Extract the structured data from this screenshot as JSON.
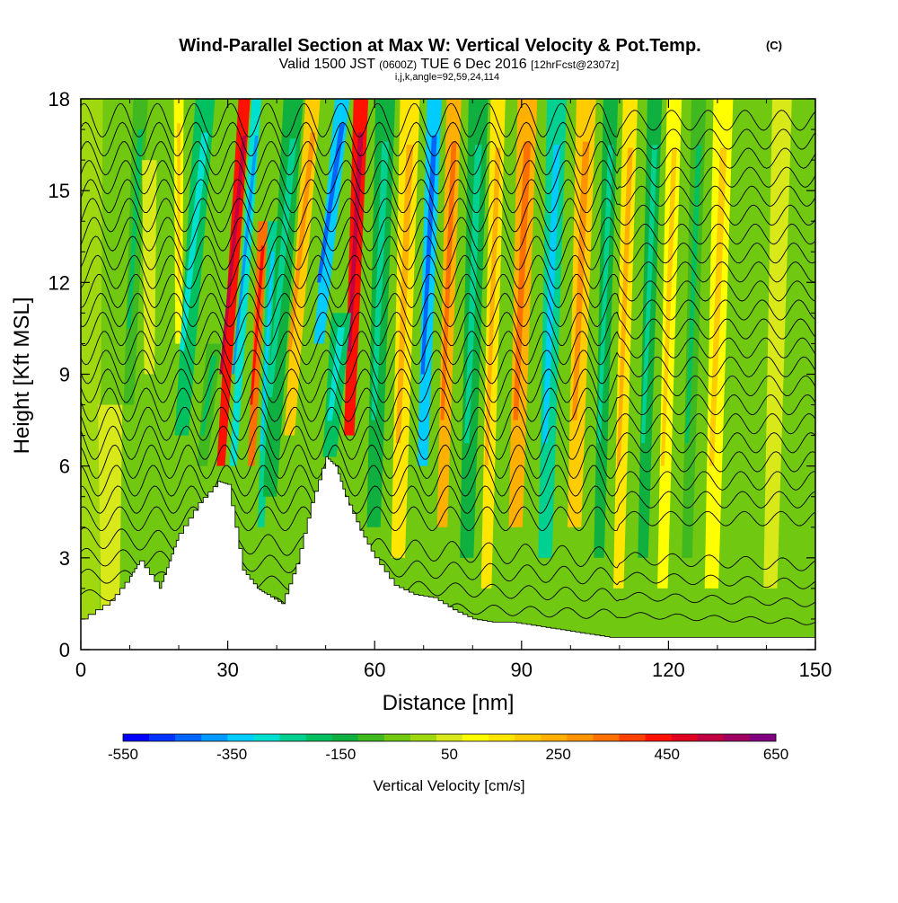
{
  "chart_data": {
    "type": "heatmap",
    "title": "Wind-Parallel Section at Max W: Vertical Velocity & Pot.Temp.",
    "title_mark": "(C)",
    "subtitle": {
      "valid": "Valid 1500 JST",
      "utc": "(0600Z)",
      "date": "TUE 6 Dec 2016",
      "forecast": "[12hrFcst@2307z]"
    },
    "indices": "i,j,k,angle=92,59,24,114",
    "xlabel": "Distance [nm]",
    "ylabel": "Height [Kft MSL]",
    "xlim": [
      0,
      150
    ],
    "ylim": [
      0,
      18
    ],
    "x_ticks": [
      "0",
      "30",
      "60",
      "90",
      "120",
      "150"
    ],
    "y_ticks": [
      "0",
      "3",
      "6",
      "9",
      "12",
      "15",
      "18"
    ],
    "colorbar": {
      "label": "Vertical Velocity [cm/s]",
      "tick_labels": [
        "-550",
        "-350",
        "-150",
        "50",
        "250",
        "450",
        "650"
      ],
      "min": -550,
      "max": 650,
      "step": 50,
      "colors": [
        "#0000ff",
        "#0033ff",
        "#0066ff",
        "#0099ff",
        "#00ccff",
        "#00e0d0",
        "#00d090",
        "#00c060",
        "#10b040",
        "#40b820",
        "#70c810",
        "#a0d810",
        "#d8e818",
        "#ffff00",
        "#ffe600",
        "#ffcc00",
        "#ffb000",
        "#ff9400",
        "#ff7000",
        "#ff4000",
        "#ff1000",
        "#e00020",
        "#c00040",
        "#a00060",
        "#800080"
      ]
    },
    "terrain_profile": {
      "distance_nm": [
        0,
        6,
        10,
        12,
        16,
        18,
        20,
        24,
        28,
        30,
        33,
        36,
        38,
        41,
        44,
        47,
        50,
        52,
        54,
        57,
        60,
        64,
        68,
        72,
        76,
        80,
        84,
        88,
        92,
        96,
        100,
        104,
        108,
        112,
        118,
        124,
        130,
        136,
        142,
        150
      ],
      "height_kft": [
        1.0,
        1.6,
        2.4,
        2.9,
        2.0,
        2.9,
        3.8,
        4.8,
        5.5,
        5.4,
        2.6,
        2.0,
        1.8,
        1.5,
        2.8,
        4.8,
        6.3,
        6.0,
        5.0,
        3.9,
        3.0,
        2.1,
        1.8,
        1.7,
        1.3,
        1.0,
        0.9,
        0.9,
        0.8,
        0.7,
        0.6,
        0.5,
        0.4,
        0.4,
        0.4,
        0.4,
        0.4,
        0.4,
        0.4,
        0.4
      ]
    },
    "vertical_velocity_cells": [
      {
        "x": 2,
        "top": 18,
        "bottom": 0,
        "w_cm_s": 0,
        "tilt": 0,
        "width_nm": 5
      },
      {
        "x": 6,
        "top": 8,
        "bottom": 0,
        "w_cm_s": 50,
        "tilt": 0,
        "width_nm": 5
      },
      {
        "x": 11,
        "top": 18,
        "bottom": 8,
        "w_cm_s": -100,
        "tilt": 1,
        "width_nm": 3
      },
      {
        "x": 14,
        "top": 16,
        "bottom": 9,
        "w_cm_s": 50,
        "tilt": 0,
        "width_nm": 3
      },
      {
        "x": 18,
        "top": 12,
        "bottom": 8,
        "w_cm_s": -50,
        "tilt": 1,
        "width_nm": 3
      },
      {
        "x": 20,
        "top": 18,
        "bottom": 10,
        "w_cm_s": 100,
        "tilt": 0,
        "width_nm": 2
      },
      {
        "x": 23,
        "top": 18,
        "bottom": 7,
        "w_cm_s": -200,
        "tilt": 2,
        "width_nm": 4
      },
      {
        "x": 26,
        "top": 10,
        "bottom": 6,
        "w_cm_s": -100,
        "tilt": 1,
        "width_nm": 3
      },
      {
        "x": 31,
        "top": 18,
        "bottom": 6,
        "w_cm_s": 450,
        "tilt": 2,
        "width_nm": 2.4
      },
      {
        "x": 33.5,
        "top": 18,
        "bottom": 6,
        "w_cm_s": -300,
        "tilt": 2,
        "width_nm": 2
      },
      {
        "x": 36,
        "top": 14,
        "bottom": 6,
        "w_cm_s": 350,
        "tilt": 1,
        "width_nm": 2
      },
      {
        "x": 38,
        "top": 14,
        "bottom": 4,
        "w_cm_s": -250,
        "tilt": 1,
        "width_nm": 2
      },
      {
        "x": 41,
        "top": 18,
        "bottom": 5,
        "w_cm_s": -150,
        "tilt": 2,
        "width_nm": 4
      },
      {
        "x": 45,
        "top": 18,
        "bottom": 7,
        "w_cm_s": 200,
        "tilt": 2,
        "width_nm": 3
      },
      {
        "x": 51,
        "top": 18,
        "bottom": 10,
        "w_cm_s": -350,
        "tilt": 2,
        "width_nm": 3
      },
      {
        "x": 56,
        "top": 18,
        "bottom": 7,
        "w_cm_s": 450,
        "tilt": 1,
        "width_nm": 3
      },
      {
        "x": 52,
        "top": 11,
        "bottom": 6.3,
        "w_cm_s": -200,
        "tilt": 1,
        "width_nm": 4
      },
      {
        "x": 61,
        "top": 18,
        "bottom": 4,
        "w_cm_s": -150,
        "tilt": 1,
        "width_nm": 4
      },
      {
        "x": 66,
        "top": 18,
        "bottom": 3,
        "w_cm_s": 150,
        "tilt": 1,
        "width_nm": 4
      },
      {
        "x": 71,
        "top": 18,
        "bottom": 6,
        "w_cm_s": -350,
        "tilt": 1,
        "width_nm": 3
      },
      {
        "x": 75,
        "top": 18,
        "bottom": 4,
        "w_cm_s": 250,
        "tilt": 1,
        "width_nm": 3
      },
      {
        "x": 80,
        "top": 18,
        "bottom": 3,
        "w_cm_s": -150,
        "tilt": 1,
        "width_nm": 4
      },
      {
        "x": 84,
        "top": 18,
        "bottom": 2,
        "w_cm_s": 150,
        "tilt": 1,
        "width_nm": 3
      },
      {
        "x": 90,
        "top": 18,
        "bottom": 4,
        "w_cm_s": 250,
        "tilt": 1,
        "width_nm": 4
      },
      {
        "x": 96,
        "top": 18,
        "bottom": 3,
        "w_cm_s": -250,
        "tilt": 1,
        "width_nm": 4
      },
      {
        "x": 102,
        "top": 18,
        "bottom": 4,
        "w_cm_s": 200,
        "tilt": 1,
        "width_nm": 4
      },
      {
        "x": 107,
        "top": 18,
        "bottom": 3,
        "w_cm_s": -150,
        "tilt": 1,
        "width_nm": 3
      },
      {
        "x": 111,
        "top": 18,
        "bottom": 2,
        "w_cm_s": 150,
        "tilt": 1,
        "width_nm": 3
      },
      {
        "x": 116,
        "top": 18,
        "bottom": 3,
        "w_cm_s": -150,
        "tilt": 1,
        "width_nm": 3
      },
      {
        "x": 120,
        "top": 18,
        "bottom": 2,
        "w_cm_s": 100,
        "tilt": 1,
        "width_nm": 3
      },
      {
        "x": 125,
        "top": 18,
        "bottom": 3,
        "w_cm_s": -100,
        "tilt": 1,
        "width_nm": 3
      },
      {
        "x": 130,
        "top": 18,
        "bottom": 2,
        "w_cm_s": 100,
        "tilt": 1,
        "width_nm": 4
      },
      {
        "x": 135,
        "top": 18,
        "bottom": 2,
        "w_cm_s": -50,
        "tilt": 1,
        "width_nm": 3
      },
      {
        "x": 142,
        "top": 18,
        "bottom": 2,
        "w_cm_s": 50,
        "tilt": 1,
        "width_nm": 4
      },
      {
        "x": 147,
        "top": 18,
        "bottom": 1,
        "w_cm_s": -50,
        "tilt": 0,
        "width_nm": 3
      }
    ],
    "theta_contours": {
      "count": 26,
      "base_height_kft": 1.8,
      "spacing_kft": 0.62,
      "wave_amplitude_kft": 0.55,
      "wave_period_nm": 7.5
    },
    "grid": false,
    "legend": "colorbar-bottom"
  }
}
